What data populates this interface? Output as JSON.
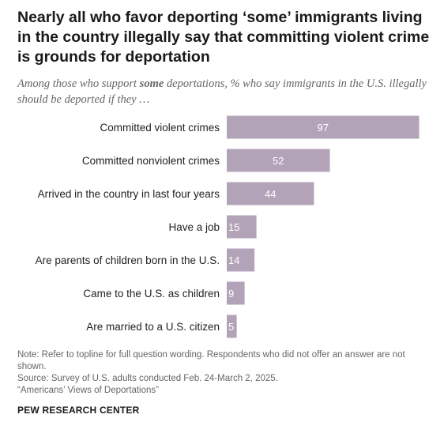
{
  "title": "Nearly all who favor deporting ‘some’ immigrants living in the country illegally say that committing violent crime is grounds for deportation",
  "subtitle": {
    "before": "Among those who support ",
    "emphasis": "some",
    "after": " deportations, % who say immigrants in the U.S. illegally should be deported if they …"
  },
  "chart_data": {
    "type": "bar",
    "orientation": "horizontal",
    "categories": [
      "Committed violent crimes",
      "Committed nonviolent crimes",
      "Arrived in the country in last four years",
      "Have a job",
      "Are parents of children born in the U.S.",
      "Came to the U.S. as children",
      "Are married to a U.S. citizen"
    ],
    "values": [
      97,
      52,
      44,
      15,
      14,
      9,
      5
    ],
    "xlim": [
      0,
      100
    ],
    "grid": false,
    "bar_color": "#b3a3b8",
    "label_color": "#ffffff"
  },
  "notes": {
    "note": "Note: Refer to topline for full question wording. Respondents who did not offer an answer are not shown.",
    "source": "Source: Survey of U.S. adults conducted Feb. 24-March 2, 2025.",
    "report": "“Americans’ Views of Deportations”"
  },
  "footer": "PEW RESEARCH CENTER"
}
